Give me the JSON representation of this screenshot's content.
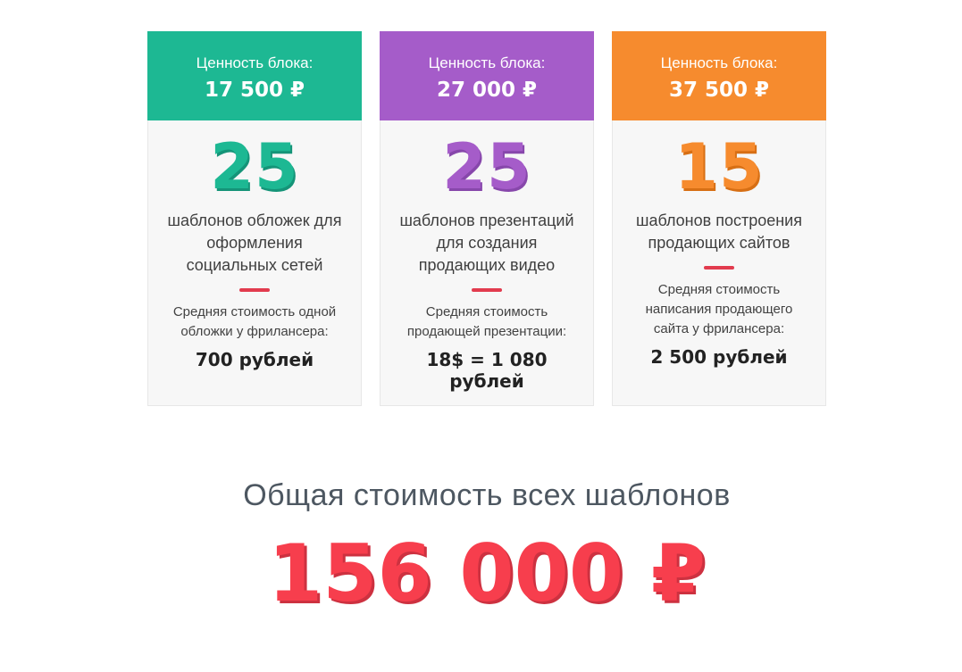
{
  "cards": [
    {
      "accent_color": "#1db893",
      "number_shadow_color": "#159478",
      "header_label": "Ценность блока:",
      "header_value": "17 500 ₽",
      "count": "25",
      "description": "шаблонов обложек для оформления социальных сетей",
      "cost_note": "Средняя стоимость одной обложки у фрилансера:",
      "cost_value": "700 рублей"
    },
    {
      "accent_color": "#a55cc9",
      "number_shadow_color": "#8747ab",
      "header_label": "Ценность блока:",
      "header_value": "27 000 ₽",
      "count": "25",
      "description": "шаблонов презентаций для создания продающих видео",
      "cost_note": "Средняя стоимость продающей презентации:",
      "cost_value": "18$ = 1 080 рублей"
    },
    {
      "accent_color": "#f68b2e",
      "number_shadow_color": "#d76f14",
      "header_label": "Ценность блока:",
      "header_value": "37 500 ₽",
      "count": "15",
      "description": "шаблонов построения продающих сайтов",
      "cost_note": "Средняя стоимость написания продающего сайта у фрилансера:",
      "cost_value": "2 500 рублей"
    }
  ],
  "summary": {
    "title": "Общая стоимость всех шаблонов",
    "total": "156 000 ₽",
    "total_color": "#f73e4d",
    "total_shadow_color": "#cd3140"
  },
  "colors": {
    "divider_red": "#e23b4e",
    "card_body_background": "#f7f7f7",
    "card_border": "#e7e7e7"
  }
}
